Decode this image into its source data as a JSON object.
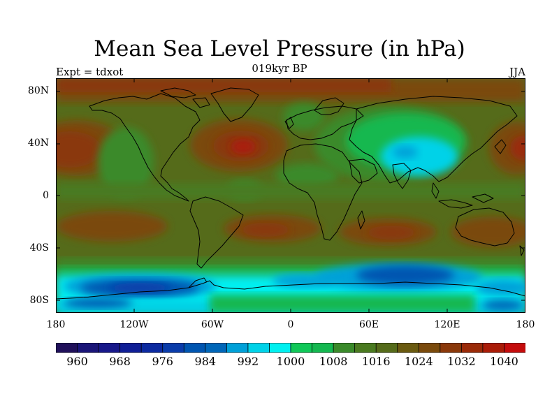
{
  "title": "Mean Sea Level Pressure (in hPa)",
  "subtitle": "019kyr BP",
  "left_label": "Expt = tdxot",
  "right_label": "JJA",
  "lat_ticks": [
    "80N",
    "40N",
    "0",
    "40S",
    "80S"
  ],
  "lon_ticks": [
    "180",
    "120W",
    "60W",
    "0",
    "60E",
    "120E",
    "180"
  ],
  "colorbar": {
    "colors": [
      "#20105a",
      "#1a1578",
      "#17188a",
      "#101e96",
      "#0c2aa0",
      "#0a3caa",
      "#0055b0",
      "#0066b8",
      "#00a0d8",
      "#00d2e8",
      "#00f0f0",
      "#10c858",
      "#14b850",
      "#3a8a2a",
      "#4a7a20",
      "#556b1a",
      "#6a5a10",
      "#7a4a0c",
      "#8a380a",
      "#9a2a08",
      "#aa1c08",
      "#c40c0c"
    ],
    "labels": [
      "960",
      "968",
      "976",
      "984",
      "992",
      "1000",
      "1008",
      "1016",
      "1024",
      "1032",
      "1040"
    ]
  }
}
